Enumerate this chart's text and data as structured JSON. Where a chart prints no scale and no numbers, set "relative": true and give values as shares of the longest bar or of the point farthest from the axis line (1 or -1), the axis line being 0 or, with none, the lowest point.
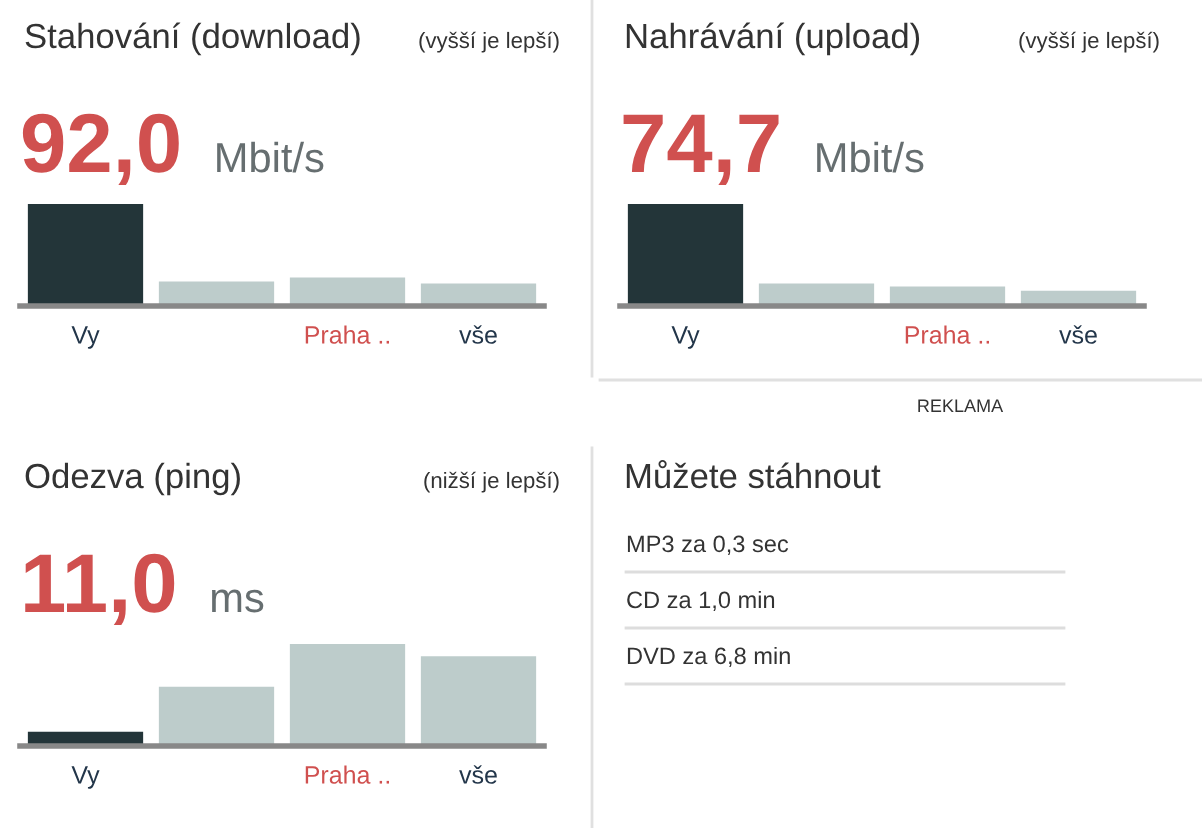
{
  "chart_data": [
    {
      "type": "bar",
      "title": "Stahování (download)",
      "subtitle": "(vyšší je lepší)",
      "annotations": [
        "92,0",
        "Mbit/s"
      ],
      "relative": true,
      "categories": [
        "Vy",
        null,
        "Praha ..",
        "vše"
      ],
      "values": [
        1,
        0.24,
        0.28,
        0.22
      ],
      "colors": [
        "#233539",
        "#bdcccb",
        "#bdcccb",
        "#bdcccb"
      ]
    },
    {
      "type": "bar",
      "title": "Nahrávání (upload)",
      "subtitle": "(vyšší je lepší)",
      "annotations": [
        "74,7",
        "Mbit/s",
        "REKLAMA"
      ],
      "relative": true,
      "categories": [
        "Vy",
        null,
        "Praha ..",
        "vše"
      ],
      "values": [
        1,
        0.22,
        0.19,
        0.15
      ],
      "colors": [
        "#233539",
        "#bdcccb",
        "#bdcccb",
        "#bdcccb"
      ]
    },
    {
      "type": "bar",
      "title": "Odezva (ping)",
      "subtitle": "(nižší je lepší)",
      "annotations": [
        "11,0",
        "ms"
      ],
      "relative": true,
      "categories": [
        "Vy",
        null,
        "Praha ..",
        "vše"
      ],
      "values": [
        0.14,
        0.58,
        1,
        0.88
      ],
      "colors": [
        "#233539",
        "#bdcccb",
        "#bdcccb",
        "#bdcccb"
      ]
    },
    {
      "type": "other",
      "title": "Můžete stáhnout",
      "annotations": [
        "MP3 za 0,3 sec",
        "CD za 1,0 min",
        "DVD za 6,8 min"
      ]
    }
  ]
}
